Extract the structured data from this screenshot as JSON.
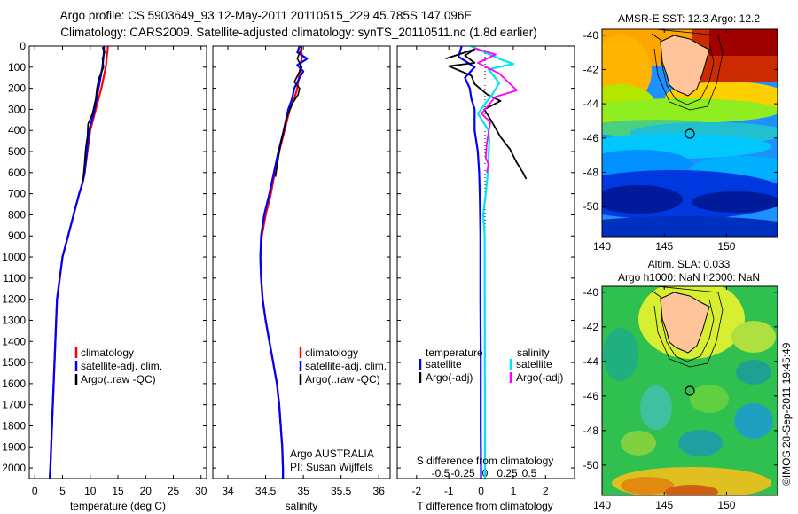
{
  "header": {
    "title_line1": "Argo profile: CS 5903649_93 12-May-2011 20110515_229 45.785S 147.096E",
    "title_line2": "Climatology: CARS2009. Satellite-adjusted climatology: synTS_20110511.nc (1.8d earlier)"
  },
  "colors": {
    "climatology": "#ff0000",
    "satellite": "#0000ff",
    "argo": "#000000",
    "sal_satellite": "#00e5ee",
    "sal_argo": "#ff00ff"
  },
  "chart_data": [
    {
      "type": "line",
      "panel": "temperature",
      "xlabel": "temperature (deg C)",
      "ylabel": "",
      "xlim": [
        -1,
        31
      ],
      "ylim": [
        2050,
        0
      ],
      "x_ticks": [
        "0",
        "5",
        "10",
        "15",
        "20",
        "25",
        "30"
      ],
      "y_ticks": [
        "0",
        "100",
        "200",
        "300",
        "400",
        "500",
        "600",
        "700",
        "800",
        "900",
        "1000",
        "1100",
        "1200",
        "1300",
        "1400",
        "1500",
        "1600",
        "1700",
        "1800",
        "1900",
        "2000"
      ],
      "legend": [
        "climatology",
        "satellite-adj. clim.",
        "Argo(..raw -QC)"
      ],
      "series": [
        {
          "name": "climatology",
          "points": [
            [
              13.2,
              0
            ],
            [
              13,
              50
            ],
            [
              12.8,
              100
            ],
            [
              12,
              200
            ],
            [
              11,
              300
            ],
            [
              10,
              400
            ],
            [
              9.5,
              500
            ],
            [
              9,
              600
            ],
            [
              8.6,
              650
            ],
            [
              8,
              700
            ],
            [
              7,
              800
            ],
            [
              6,
              900
            ],
            [
              5,
              1000
            ],
            [
              4.5,
              1100
            ],
            [
              4,
              1200
            ],
            [
              3.7,
              1400
            ],
            [
              3.4,
              1600
            ],
            [
              3.1,
              1800
            ],
            [
              2.8,
              2000
            ],
            [
              2.7,
              2050
            ]
          ]
        },
        {
          "name": "satellite-adj. clim.",
          "points": [
            [
              12.5,
              0
            ],
            [
              12.4,
              50
            ],
            [
              12.2,
              100
            ],
            [
              11.5,
              200
            ],
            [
              10.8,
              300
            ],
            [
              9.8,
              400
            ],
            [
              9.4,
              500
            ],
            [
              9,
              600
            ],
            [
              8.6,
              650
            ],
            [
              8,
              700
            ],
            [
              7,
              800
            ],
            [
              6,
              900
            ],
            [
              5,
              1000
            ],
            [
              4.5,
              1100
            ],
            [
              4,
              1200
            ],
            [
              3.7,
              1400
            ],
            [
              3.4,
              1600
            ],
            [
              3.1,
              1800
            ],
            [
              2.8,
              2000
            ],
            [
              2.7,
              2050
            ]
          ]
        },
        {
          "name": "Argo(..raw -QC)",
          "points": [
            [
              12.2,
              5
            ],
            [
              12.6,
              30
            ],
            [
              12.2,
              60
            ],
            [
              12.4,
              100
            ],
            [
              11.6,
              150
            ],
            [
              11.2,
              200
            ],
            [
              11,
              250
            ],
            [
              10.4,
              320
            ],
            [
              9.6,
              370
            ],
            [
              9.5,
              430
            ],
            [
              9.2,
              480
            ],
            [
              9,
              550
            ],
            [
              8.7,
              640
            ]
          ]
        }
      ]
    },
    {
      "type": "line",
      "panel": "salinity",
      "xlabel": "salinity",
      "ylabel": "",
      "xlim": [
        33.8,
        36.15
      ],
      "ylim": [
        2050,
        0
      ],
      "x_ticks": [
        "34",
        "34.5",
        "35",
        "35.5",
        "36"
      ],
      "legend": [
        "climatology",
        "satellite-adj. clim.",
        "Argo(..raw -QC)"
      ],
      "annotation_line1": "Argo AUSTRALIA",
      "annotation_line2": "PI: Susan Wijffels",
      "series": [
        {
          "name": "climatology",
          "points": [
            [
              34.97,
              0
            ],
            [
              34.98,
              50
            ],
            [
              34.96,
              100
            ],
            [
              34.92,
              200
            ],
            [
              34.88,
              250
            ],
            [
              34.82,
              300
            ],
            [
              34.75,
              400
            ],
            [
              34.68,
              500
            ],
            [
              34.62,
              600
            ],
            [
              34.57,
              700
            ],
            [
              34.5,
              800
            ],
            [
              34.45,
              900
            ],
            [
              34.43,
              1000
            ],
            [
              34.44,
              1100
            ],
            [
              34.46,
              1200
            ],
            [
              34.5,
              1300
            ],
            [
              34.55,
              1400
            ],
            [
              34.6,
              1500
            ],
            [
              34.65,
              1600
            ],
            [
              34.68,
              1700
            ],
            [
              34.7,
              1800
            ],
            [
              34.72,
              1900
            ],
            [
              34.73,
              2000
            ],
            [
              34.73,
              2050
            ]
          ]
        },
        {
          "name": "satellite-adj. clim.",
          "points": [
            [
              34.95,
              0
            ],
            [
              34.92,
              30
            ],
            [
              35.05,
              60
            ],
            [
              34.92,
              90
            ],
            [
              35.0,
              120
            ],
            [
              34.95,
              150
            ],
            [
              34.88,
              200
            ],
            [
              34.85,
              250
            ],
            [
              34.8,
              300
            ],
            [
              34.74,
              400
            ],
            [
              34.67,
              500
            ],
            [
              34.61,
              600
            ],
            [
              34.55,
              700
            ],
            [
              34.48,
              800
            ],
            [
              34.44,
              900
            ],
            [
              34.43,
              1000
            ],
            [
              34.44,
              1100
            ],
            [
              34.46,
              1200
            ],
            [
              34.5,
              1300
            ],
            [
              34.55,
              1400
            ],
            [
              34.6,
              1500
            ],
            [
              34.65,
              1600
            ],
            [
              34.68,
              1700
            ],
            [
              34.7,
              1800
            ],
            [
              34.72,
              1900
            ],
            [
              34.73,
              2000
            ],
            [
              34.73,
              2050
            ]
          ]
        },
        {
          "name": "Argo(..raw -QC)",
          "points": [
            [
              34.98,
              5
            ],
            [
              34.92,
              60
            ],
            [
              34.98,
              100
            ],
            [
              34.88,
              170
            ],
            [
              34.95,
              200
            ],
            [
              34.93,
              230
            ],
            [
              34.86,
              270
            ],
            [
              34.8,
              320
            ],
            [
              34.75,
              380
            ],
            [
              34.72,
              430
            ],
            [
              34.69,
              480
            ],
            [
              34.66,
              550
            ],
            [
              34.63,
              620
            ]
          ]
        }
      ]
    },
    {
      "type": "line",
      "panel": "difference",
      "xlabel": "T difference from climatology",
      "x2label": "S difference from climatology",
      "xlim": [
        -2.6,
        2.9
      ],
      "ylim": [
        2050,
        0
      ],
      "x_ticks": [
        "-2",
        "-1",
        "0",
        "1",
        "2"
      ],
      "x2_ticks": [
        "-0.5",
        "-0.25",
        "0",
        "0.25",
        "0.5"
      ],
      "legend_groups": [
        "temperature",
        "salinity"
      ],
      "legend": [
        "satellite",
        "Argo(-adj)",
        "satellite",
        "Argo(-adj)"
      ],
      "series": [
        {
          "name": "temperature satellite",
          "points": [
            [
              -0.6,
              0
            ],
            [
              -0.7,
              50
            ],
            [
              -0.2,
              100
            ],
            [
              -0.5,
              150
            ],
            [
              -0.35,
              200
            ],
            [
              -0.3,
              250
            ],
            [
              -0.2,
              300
            ],
            [
              -0.2,
              400
            ],
            [
              -0.1,
              500
            ],
            [
              -0.06,
              600
            ],
            [
              -0.04,
              700
            ],
            [
              -0.03,
              800
            ],
            [
              -0.02,
              900
            ],
            [
              -0.02,
              1000
            ],
            [
              -0.02,
              1200
            ],
            [
              -0.01,
              1500
            ],
            [
              -0.01,
              1800
            ],
            [
              0,
              2000
            ],
            [
              0,
              2050
            ]
          ]
        },
        {
          "name": "temperature Argo(-adj)",
          "points": [
            [
              -1.1,
              60
            ],
            [
              -0.2,
              15
            ],
            [
              -0.5,
              45
            ],
            [
              -0.2,
              80
            ],
            [
              -1.0,
              95
            ],
            [
              -0.3,
              140
            ],
            [
              -0.2,
              180
            ],
            [
              0.2,
              230
            ],
            [
              0.6,
              260
            ],
            [
              0.1,
              300
            ],
            [
              0.3,
              350
            ],
            [
              0.6,
              430
            ],
            [
              0.9,
              490
            ],
            [
              1.1,
              550
            ],
            [
              1.3,
              600
            ],
            [
              1.4,
              630
            ]
          ]
        },
        {
          "name": "salinity satellite",
          "points": [
            [
              -0.4,
              0
            ],
            [
              0.4,
              60
            ],
            [
              0.8,
              85
            ],
            [
              0.1,
              110
            ],
            [
              0.4,
              175
            ],
            [
              0.2,
              230
            ],
            [
              -0.2,
              320
            ],
            [
              0.1,
              400
            ],
            [
              0.12,
              450
            ],
            [
              0.08,
              600
            ],
            [
              0.02,
              700
            ],
            [
              -0.05,
              800
            ],
            [
              -0.01,
              900
            ],
            [
              0,
              2050
            ]
          ]
        },
        {
          "name": "salinity Argo(-adj)",
          "points": [
            [
              -0.3,
              10
            ],
            [
              0.3,
              40
            ],
            [
              -0.2,
              80
            ],
            [
              0.4,
              130
            ],
            [
              0.9,
              210
            ],
            [
              0.3,
              240
            ],
            [
              -0.1,
              320
            ],
            [
              0.15,
              360
            ],
            [
              0.05,
              460
            ],
            [
              0.02,
              530
            ],
            [
              0.1,
              560
            ],
            [
              0.05,
              600
            ]
          ]
        }
      ]
    }
  ],
  "maps": [
    {
      "title_line1": "AMSR-E SST: 12.3 Argo: 12.2",
      "title_line2": "",
      "lat_ticks": [
        "-40",
        "-42",
        "-44",
        "-46",
        "-48",
        "-50"
      ],
      "lon_ticks": [
        "140",
        "145",
        "150"
      ],
      "float_marker": {
        "lon": 147.1,
        "lat": -45.8
      }
    },
    {
      "title_line1": "Altim. SLA: 0.033",
      "title_line2": "Argo h1000: NaN h2000: NaN",
      "lat_ticks": [
        "-40",
        "-42",
        "-44",
        "-46",
        "-48",
        "-50"
      ],
      "lon_ticks": [
        "140",
        "145",
        "150"
      ],
      "float_marker": {
        "lon": 147.1,
        "lat": -45.8
      }
    }
  ],
  "credit": "©IMOS 28-Sep-2011 19:45:49"
}
